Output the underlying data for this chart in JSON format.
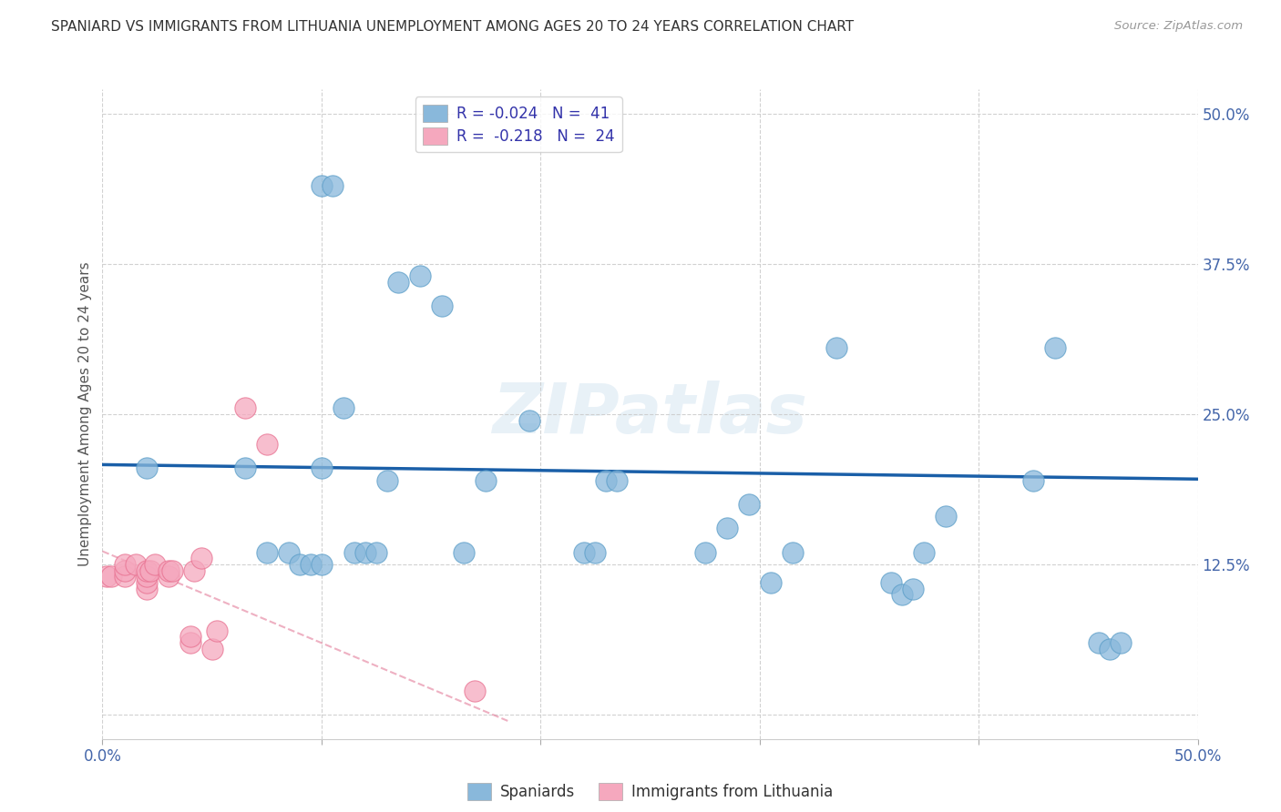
{
  "title": "SPANIARD VS IMMIGRANTS FROM LITHUANIA UNEMPLOYMENT AMONG AGES 20 TO 24 YEARS CORRELATION CHART",
  "source": "Source: ZipAtlas.com",
  "ylabel": "Unemployment Among Ages 20 to 24 years",
  "xlim": [
    0.0,
    0.5
  ],
  "ylim": [
    -0.02,
    0.52
  ],
  "xticks": [
    0.0,
    0.1,
    0.2,
    0.3,
    0.4,
    0.5
  ],
  "yticks": [
    0.0,
    0.125,
    0.25,
    0.375,
    0.5
  ],
  "xticklabels": [
    "0.0%",
    "",
    "",
    "",
    "",
    "50.0%"
  ],
  "yticklabels": [
    "",
    "12.5%",
    "25.0%",
    "37.5%",
    "50.0%"
  ],
  "legend_r_label1": "R = -0.024   N =  41",
  "legend_r_label2": "R =  -0.218   N =  24",
  "spaniards_x": [
    0.02,
    0.065,
    0.075,
    0.085,
    0.09,
    0.095,
    0.1,
    0.1,
    0.1,
    0.105,
    0.11,
    0.115,
    0.12,
    0.125,
    0.13,
    0.135,
    0.145,
    0.155,
    0.165,
    0.175,
    0.195,
    0.22,
    0.225,
    0.23,
    0.235,
    0.275,
    0.285,
    0.295,
    0.305,
    0.315,
    0.335,
    0.36,
    0.365,
    0.37,
    0.375,
    0.385,
    0.425,
    0.435,
    0.455,
    0.46,
    0.465
  ],
  "spaniards_y": [
    0.205,
    0.205,
    0.135,
    0.135,
    0.125,
    0.125,
    0.125,
    0.205,
    0.44,
    0.44,
    0.255,
    0.135,
    0.135,
    0.135,
    0.195,
    0.36,
    0.365,
    0.34,
    0.135,
    0.195,
    0.245,
    0.135,
    0.135,
    0.195,
    0.195,
    0.135,
    0.155,
    0.175,
    0.11,
    0.135,
    0.305,
    0.11,
    0.1,
    0.105,
    0.135,
    0.165,
    0.195,
    0.305,
    0.06,
    0.055,
    0.06
  ],
  "lithuania_x": [
    0.002,
    0.004,
    0.01,
    0.01,
    0.01,
    0.015,
    0.02,
    0.02,
    0.02,
    0.02,
    0.022,
    0.024,
    0.03,
    0.03,
    0.032,
    0.04,
    0.04,
    0.042,
    0.045,
    0.05,
    0.052,
    0.065,
    0.075,
    0.17
  ],
  "lithuania_y": [
    0.115,
    0.115,
    0.115,
    0.12,
    0.125,
    0.125,
    0.105,
    0.11,
    0.115,
    0.12,
    0.12,
    0.125,
    0.115,
    0.12,
    0.12,
    0.06,
    0.065,
    0.12,
    0.13,
    0.055,
    0.07,
    0.255,
    0.225,
    0.02
  ],
  "spaniard_line_x": [
    0.0,
    0.5
  ],
  "spaniard_line_y": [
    0.208,
    0.196
  ],
  "lithuania_line_x": [
    0.0,
    0.185
  ],
  "lithuania_line_y": [
    0.136,
    -0.005
  ],
  "blue_color": "#89b8db",
  "pink_color": "#f5a8be",
  "blue_scatter_edge": "#5a9dc8",
  "pink_scatter_edge": "#e87090",
  "blue_line_color": "#1a5fa8",
  "pink_line_color": "#e07090",
  "watermark_text": "ZIPatlas",
  "background_color": "#ffffff",
  "grid_color": "#cccccc"
}
